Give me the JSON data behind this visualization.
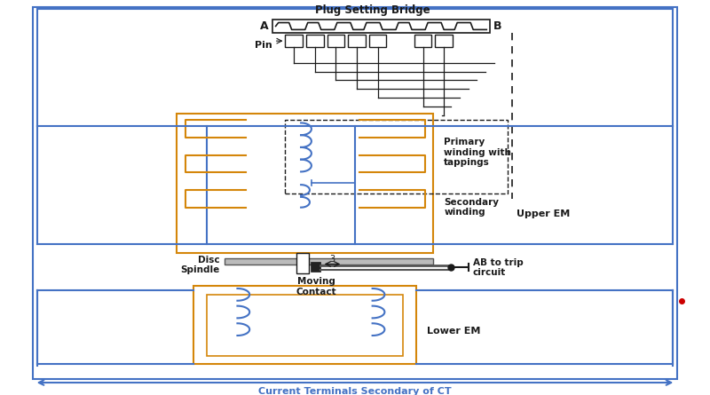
{
  "bg_color": "#ffffff",
  "orange_color": "#D4860A",
  "blue_color": "#4472C4",
  "dark_color": "#1a1a1a",
  "gray_color": "#888888",
  "red_color": "#cc0000",
  "label_plug": "Plug Setting Bridge",
  "label_A": "A",
  "label_B": "B",
  "label_Pin": "Pin",
  "label_primary": "Primary\nwinding with\ntappings",
  "label_secondary": "Secondary\nwinding",
  "label_upper": "Upper EM",
  "label_lower": "Lower EM",
  "label_disc": "Disc\nSpindle",
  "label_moving": "Moving\nContact",
  "label_ab": "AB to trip\ncircuit",
  "label_ct": "Current Terminals Secondary of CT",
  "label_3": "3"
}
